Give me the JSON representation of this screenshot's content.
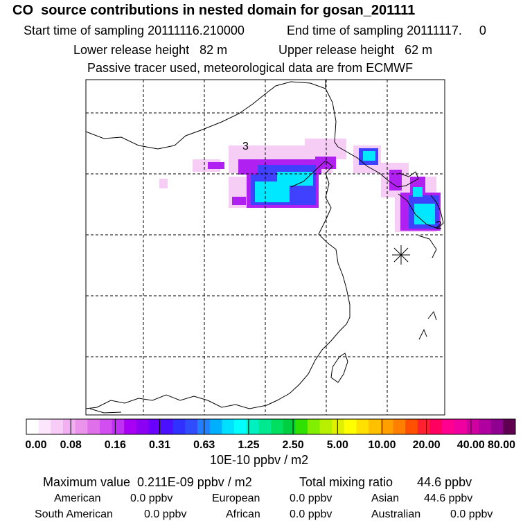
{
  "header": {
    "title": "CO  source contributions in nested domain for gosan_201111",
    "start_label": "Start time of sampling 20111116.210000",
    "end_label": "End time of sampling 20111117.     0",
    "lower_height": "Lower release height   82 m",
    "upper_height": "Upper release height   62 m",
    "tracer_note": "Passive tracer used, meteorological data are from ECMWF"
  },
  "map": {
    "labels": {
      "source_a": "3",
      "source_b": "2"
    },
    "receptor_marker": "asterisk-icon"
  },
  "colorbar": {
    "colors": [
      "#ffffff",
      "#fbe6fb",
      "#f7ccf7",
      "#f2b0f2",
      "#ec94ec",
      "#e070ea",
      "#d24ef0",
      "#c030f4",
      "#a800f4",
      "#8c00f4",
      "#6a00ff",
      "#4a10ff",
      "#3030ff",
      "#2f4cff",
      "#2080ff",
      "#00b0ff",
      "#00e0ff",
      "#00ffff",
      "#00f0c0",
      "#00e890",
      "#00e060",
      "#00d040",
      "#30e000",
      "#80f000",
      "#b8f000",
      "#e0f000",
      "#ffff00",
      "#ffe000",
      "#ffc000",
      "#ffa000",
      "#ff8000",
      "#ff5000",
      "#ff2030",
      "#ff0060",
      "#ff0090",
      "#f000a0",
      "#d000a0",
      "#b000a0",
      "#900090",
      "#600050"
    ],
    "ticks": [
      "0.00",
      "0.08",
      "0.16",
      "0.31",
      "0.63",
      "1.25",
      "2.50",
      "5.00",
      "10.00",
      "20.00",
      "40.00",
      "80.00"
    ],
    "unit": "10E-10 ppbv / m2"
  },
  "summary": {
    "max_value": "Maximum value  0.211E-09 ppbv / m2",
    "total": "Total mixing ratio       44.6 ppbv",
    "american_label": "American",
    "american_value": "0.0 ppbv",
    "european_label": "European",
    "european_value": "0.0 ppbv",
    "asian_label": "Asian",
    "asian_value": "44.6 ppbv",
    "south_american_label": "South American",
    "south_american_value": "0.0 ppbv",
    "african_label": "African",
    "african_value": "0.0 ppbv",
    "australian_label": "Australian",
    "australian_value": "0.0 ppbv"
  }
}
